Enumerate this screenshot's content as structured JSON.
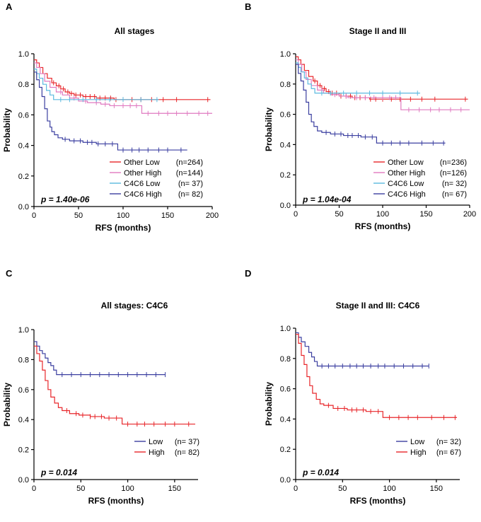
{
  "chart_data": [
    {
      "panel": "A",
      "type": "line",
      "title": "All stages",
      "xlabel": "RFS (months)",
      "ylabel": "Probability",
      "xlim": [
        0,
        200
      ],
      "ylim": [
        0,
        1.0
      ],
      "xticks": [
        0,
        50,
        100,
        150,
        200
      ],
      "yticks": [
        0.0,
        0.2,
        0.4,
        0.6,
        0.8,
        1.0
      ],
      "p_value": "p = 1.40e-06",
      "series": [
        {
          "name": "Other Low",
          "n": "(n=264)",
          "color": "#e8262a",
          "points": [
            [
              0,
              0.96
            ],
            [
              3,
              0.94
            ],
            [
              6,
              0.91
            ],
            [
              10,
              0.87
            ],
            [
              15,
              0.84
            ],
            [
              20,
              0.81
            ],
            [
              25,
              0.79
            ],
            [
              30,
              0.77
            ],
            [
              35,
              0.75
            ],
            [
              40,
              0.74
            ],
            [
              45,
              0.73
            ],
            [
              55,
              0.72
            ],
            [
              70,
              0.71
            ],
            [
              90,
              0.7
            ],
            [
              120,
              0.7
            ],
            [
              198,
              0.7
            ]
          ],
          "censor": [
            22,
            28,
            33,
            38,
            42,
            47,
            52,
            58,
            63,
            68,
            74,
            80,
            86,
            92,
            100,
            110,
            120,
            132,
            145,
            160,
            195
          ]
        },
        {
          "name": "Other High",
          "n": "(n=144)",
          "color": "#e07ac0",
          "points": [
            [
              0,
              0.94
            ],
            [
              3,
              0.91
            ],
            [
              7,
              0.87
            ],
            [
              12,
              0.82
            ],
            [
              18,
              0.78
            ],
            [
              25,
              0.75
            ],
            [
              32,
              0.73
            ],
            [
              40,
              0.71
            ],
            [
              50,
              0.69
            ],
            [
              60,
              0.68
            ],
            [
              75,
              0.67
            ],
            [
              85,
              0.66
            ],
            [
              118,
              0.66
            ],
            [
              121,
              0.61
            ],
            [
              200,
              0.61
            ]
          ],
          "censor": [
            30,
            45,
            58,
            70,
            80,
            90,
            100,
            108,
            115,
            128,
            140,
            150,
            160,
            172,
            185,
            195
          ]
        },
        {
          "name": "C4C6 Low",
          "n": "(n= 37)",
          "color": "#5bb9df",
          "points": [
            [
              0,
              0.9
            ],
            [
              3,
              0.87
            ],
            [
              6,
              0.84
            ],
            [
              10,
              0.8
            ],
            [
              14,
              0.76
            ],
            [
              18,
              0.73
            ],
            [
              22,
              0.7
            ],
            [
              140,
              0.7
            ]
          ],
          "censor": [
            30,
            40,
            55,
            70,
            85,
            100,
            120,
            138
          ]
        },
        {
          "name": "C4C6 High",
          "n": "(n= 82)",
          "color": "#3b3fa0",
          "points": [
            [
              0,
              0.88
            ],
            [
              3,
              0.83
            ],
            [
              6,
              0.78
            ],
            [
              9,
              0.72
            ],
            [
              12,
              0.64
            ],
            [
              15,
              0.56
            ],
            [
              18,
              0.52
            ],
            [
              20,
              0.49
            ],
            [
              23,
              0.47
            ],
            [
              27,
              0.45
            ],
            [
              32,
              0.44
            ],
            [
              40,
              0.43
            ],
            [
              55,
              0.42
            ],
            [
              70,
              0.41
            ],
            [
              92,
              0.41
            ],
            [
              94,
              0.37
            ],
            [
              172,
              0.37
            ]
          ],
          "censor": [
            35,
            45,
            52,
            60,
            65,
            72,
            80,
            88,
            100,
            110,
            118,
            128,
            140,
            150,
            165
          ]
        }
      ]
    },
    {
      "panel": "B",
      "type": "line",
      "title": "Stage II and III",
      "xlabel": "RFS (months)",
      "ylabel": "Probability",
      "xlim": [
        0,
        200
      ],
      "ylim": [
        0,
        1.0
      ],
      "xticks": [
        0,
        50,
        100,
        150,
        200
      ],
      "yticks": [
        0.0,
        0.2,
        0.4,
        0.6,
        0.8,
        1.0
      ],
      "p_value": "p = 1.04e-04",
      "series": [
        {
          "name": "Other Low",
          "n": "(n=236)",
          "color": "#e8262a",
          "points": [
            [
              0,
              0.98
            ],
            [
              3,
              0.96
            ],
            [
              6,
              0.93
            ],
            [
              10,
              0.89
            ],
            [
              15,
              0.85
            ],
            [
              20,
              0.82
            ],
            [
              25,
              0.79
            ],
            [
              30,
              0.77
            ],
            [
              35,
              0.75
            ],
            [
              40,
              0.74
            ],
            [
              50,
              0.72
            ],
            [
              65,
              0.71
            ],
            [
              85,
              0.7
            ],
            [
              198,
              0.7
            ]
          ],
          "censor": [
            22,
            28,
            33,
            38,
            42,
            47,
            52,
            58,
            63,
            68,
            74,
            80,
            86,
            92,
            100,
            110,
            120,
            132,
            145,
            160,
            195
          ]
        },
        {
          "name": "Other High",
          "n": "(n=126)",
          "color": "#e07ac0",
          "points": [
            [
              0,
              0.96
            ],
            [
              3,
              0.93
            ],
            [
              7,
              0.88
            ],
            [
              12,
              0.83
            ],
            [
              18,
              0.79
            ],
            [
              25,
              0.76
            ],
            [
              32,
              0.74
            ],
            [
              40,
              0.73
            ],
            [
              50,
              0.72
            ],
            [
              60,
              0.71
            ],
            [
              118,
              0.71
            ],
            [
              121,
              0.63
            ],
            [
              200,
              0.63
            ]
          ],
          "censor": [
            30,
            45,
            58,
            70,
            80,
            90,
            100,
            108,
            115,
            130,
            142,
            155,
            165,
            178,
            190
          ]
        },
        {
          "name": "C4C6 Low",
          "n": "(n= 32)",
          "color": "#5bb9df",
          "points": [
            [
              0,
              0.94
            ],
            [
              3,
              0.91
            ],
            [
              6,
              0.88
            ],
            [
              10,
              0.84
            ],
            [
              14,
              0.8
            ],
            [
              18,
              0.77
            ],
            [
              22,
              0.74
            ],
            [
              143,
              0.74
            ]
          ],
          "censor": [
            30,
            40,
            55,
            70,
            85,
            100,
            120,
            140
          ]
        },
        {
          "name": "C4C6 High",
          "n": "(n= 67)",
          "color": "#3b3fa0",
          "points": [
            [
              0,
              0.93
            ],
            [
              3,
              0.87
            ],
            [
              6,
              0.82
            ],
            [
              9,
              0.76
            ],
            [
              12,
              0.68
            ],
            [
              15,
              0.6
            ],
            [
              18,
              0.55
            ],
            [
              21,
              0.52
            ],
            [
              25,
              0.49
            ],
            [
              30,
              0.48
            ],
            [
              40,
              0.47
            ],
            [
              55,
              0.46
            ],
            [
              75,
              0.45
            ],
            [
              91,
              0.45
            ],
            [
              93,
              0.41
            ],
            [
              172,
              0.41
            ]
          ],
          "censor": [
            35,
            45,
            52,
            60,
            65,
            72,
            80,
            88,
            100,
            110,
            120,
            130,
            145,
            158,
            170
          ]
        }
      ]
    },
    {
      "panel": "C",
      "type": "line",
      "title": "All stages: C4C6",
      "xlabel": "RFS (months)",
      "ylabel": "Probability",
      "xlim": [
        0,
        175
      ],
      "ylim": [
        0,
        1.0
      ],
      "xticks": [
        0,
        50,
        100,
        150
      ],
      "yticks": [
        0.0,
        0.2,
        0.4,
        0.6,
        0.8,
        1.0
      ],
      "p_value": "p = 0.014",
      "series": [
        {
          "name": "Low",
          "n": "(n= 37)",
          "color": "#3b3fa0",
          "points": [
            [
              0,
              0.92
            ],
            [
              3,
              0.89
            ],
            [
              6,
              0.86
            ],
            [
              9,
              0.84
            ],
            [
              12,
              0.81
            ],
            [
              15,
              0.78
            ],
            [
              18,
              0.76
            ],
            [
              21,
              0.73
            ],
            [
              24,
              0.7
            ],
            [
              140,
              0.7
            ]
          ],
          "censor": [
            30,
            40,
            50,
            60,
            70,
            80,
            90,
            100,
            110,
            120,
            130,
            140
          ]
        },
        {
          "name": "High",
          "n": "(n= 82)",
          "color": "#e8262a",
          "points": [
            [
              0,
              0.89
            ],
            [
              3,
              0.84
            ],
            [
              6,
              0.79
            ],
            [
              9,
              0.73
            ],
            [
              12,
              0.66
            ],
            [
              15,
              0.6
            ],
            [
              18,
              0.55
            ],
            [
              22,
              0.51
            ],
            [
              26,
              0.48
            ],
            [
              30,
              0.46
            ],
            [
              38,
              0.44
            ],
            [
              48,
              0.43
            ],
            [
              60,
              0.42
            ],
            [
              75,
              0.41
            ],
            [
              92,
              0.41
            ],
            [
              94,
              0.37
            ],
            [
              172,
              0.37
            ]
          ],
          "censor": [
            35,
            45,
            52,
            60,
            65,
            72,
            80,
            88,
            100,
            110,
            118,
            128,
            140,
            150,
            165
          ]
        }
      ]
    },
    {
      "panel": "D",
      "type": "line",
      "title": "Stage II and III: C4C6",
      "xlabel": "RFS (months)",
      "ylabel": "Probability",
      "xlim": [
        0,
        175
      ],
      "ylim": [
        0,
        1.0
      ],
      "xticks": [
        0,
        50,
        100,
        150
      ],
      "yticks": [
        0.0,
        0.2,
        0.4,
        0.6,
        0.8,
        1.0
      ],
      "p_value": "p = 0.014",
      "series": [
        {
          "name": "Low",
          "n": "(n= 32)",
          "color": "#3b3fa0",
          "points": [
            [
              0,
              0.97
            ],
            [
              3,
              0.94
            ],
            [
              6,
              0.91
            ],
            [
              10,
              0.88
            ],
            [
              14,
              0.84
            ],
            [
              17,
              0.81
            ],
            [
              20,
              0.78
            ],
            [
              23,
              0.75
            ],
            [
              142,
              0.75
            ]
          ],
          "censor": [
            28,
            35,
            42,
            50,
            58,
            65,
            72,
            80,
            88,
            95,
            105,
            115,
            125,
            135,
            142
          ]
        },
        {
          "name": "High",
          "n": "(n= 67)",
          "color": "#e8262a",
          "points": [
            [
              0,
              0.96
            ],
            [
              3,
              0.9
            ],
            [
              6,
              0.82
            ],
            [
              9,
              0.76
            ],
            [
              12,
              0.68
            ],
            [
              15,
              0.62
            ],
            [
              18,
              0.57
            ],
            [
              22,
              0.53
            ],
            [
              26,
              0.5
            ],
            [
              30,
              0.49
            ],
            [
              40,
              0.47
            ],
            [
              55,
              0.46
            ],
            [
              75,
              0.45
            ],
            [
              91,
              0.45
            ],
            [
              93,
              0.41
            ],
            [
              172,
              0.41
            ]
          ],
          "censor": [
            35,
            45,
            52,
            60,
            65,
            72,
            80,
            88,
            100,
            110,
            120,
            130,
            145,
            158,
            170
          ]
        }
      ]
    }
  ]
}
